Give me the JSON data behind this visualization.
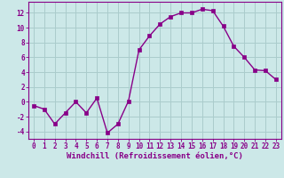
{
  "x": [
    0,
    1,
    2,
    3,
    4,
    5,
    6,
    7,
    8,
    9,
    10,
    11,
    12,
    13,
    14,
    15,
    16,
    17,
    18,
    19,
    20,
    21,
    22,
    23
  ],
  "y": [
    -0.5,
    -1.0,
    -3.0,
    -1.5,
    0.0,
    -1.5,
    0.5,
    -4.2,
    -3.0,
    0.1,
    7.0,
    8.9,
    10.5,
    11.5,
    12.0,
    12.0,
    12.5,
    12.3,
    10.2,
    7.5,
    6.0,
    4.3,
    4.2,
    3.0
  ],
  "line_color": "#880088",
  "marker": "s",
  "marker_size": 2.5,
  "bg_color": "#cce8e8",
  "grid_color": "#aacccc",
  "xlabel": "Windchill (Refroidissement éolien,°C)",
  "xlim": [
    -0.5,
    23.5
  ],
  "ylim": [
    -5,
    13.5
  ],
  "yticks": [
    -4,
    -2,
    0,
    2,
    4,
    6,
    8,
    10,
    12
  ],
  "xticks": [
    0,
    1,
    2,
    3,
    4,
    5,
    6,
    7,
    8,
    9,
    10,
    11,
    12,
    13,
    14,
    15,
    16,
    17,
    18,
    19,
    20,
    21,
    22,
    23
  ],
  "tick_color": "#880088",
  "tick_fontsize": 5.5,
  "xlabel_fontsize": 6.5,
  "line_width": 1.0
}
